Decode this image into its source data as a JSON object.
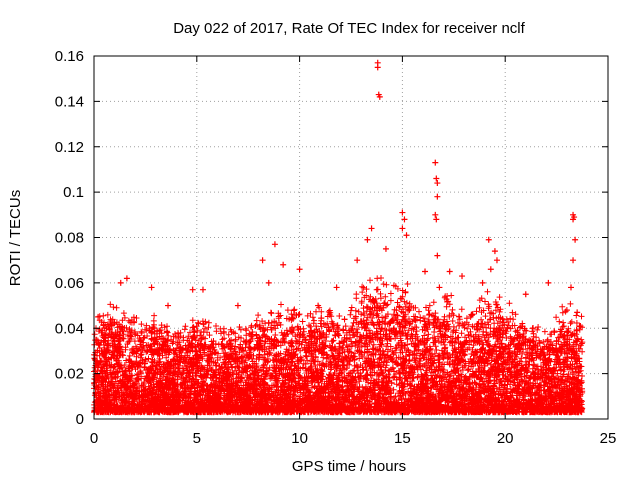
{
  "chart_data": {
    "type": "scatter",
    "title": "Day 022 of 2017, Rate Of TEC Index for receiver nclf",
    "xlabel": "GPS time / hours",
    "ylabel": "ROTI / TECUs",
    "xlim": [
      0,
      25
    ],
    "ylim": [
      0,
      0.16
    ],
    "xticks": [
      0,
      5,
      10,
      15,
      20,
      25
    ],
    "yticks": [
      0,
      0.02,
      0.04,
      0.06,
      0.08,
      0.1,
      0.12,
      0.14,
      0.16
    ],
    "xtick_labels": [
      "0",
      "5",
      "10",
      "15",
      "20",
      "25"
    ],
    "ytick_labels": [
      "0",
      "0.02",
      "0.04",
      "0.06",
      "0.08",
      "0.1",
      "0.12",
      "0.14",
      "0.16"
    ],
    "grid": true,
    "marker": "+",
    "marker_color": "#ff0000",
    "data_range_hours": [
      0,
      23.75
    ],
    "series": [
      {
        "name": "ROTI",
        "envelope_hours": [
          0,
          1,
          2,
          3,
          4,
          5,
          6,
          7,
          8,
          9,
          10,
          11,
          12,
          13,
          14,
          15,
          16,
          17,
          18,
          19,
          20,
          21,
          22,
          23,
          23.75
        ],
        "envelope_typical_max": [
          0.04,
          0.045,
          0.04,
          0.04,
          0.035,
          0.04,
          0.035,
          0.035,
          0.04,
          0.045,
          0.045,
          0.045,
          0.04,
          0.055,
          0.06,
          0.055,
          0.045,
          0.05,
          0.045,
          0.05,
          0.045,
          0.04,
          0.035,
          0.045,
          0.04
        ],
        "peaks": [
          {
            "x": 0.2,
            "y": 0.045
          },
          {
            "x": 1.3,
            "y": 0.06
          },
          {
            "x": 1.6,
            "y": 0.062
          },
          {
            "x": 2.8,
            "y": 0.058
          },
          {
            "x": 3.6,
            "y": 0.05
          },
          {
            "x": 4.8,
            "y": 0.057
          },
          {
            "x": 5.3,
            "y": 0.057
          },
          {
            "x": 7.0,
            "y": 0.05
          },
          {
            "x": 8.2,
            "y": 0.07
          },
          {
            "x": 8.5,
            "y": 0.06
          },
          {
            "x": 8.8,
            "y": 0.077
          },
          {
            "x": 9.2,
            "y": 0.068
          },
          {
            "x": 10.0,
            "y": 0.066
          },
          {
            "x": 10.9,
            "y": 0.05
          },
          {
            "x": 11.8,
            "y": 0.058
          },
          {
            "x": 12.8,
            "y": 0.07
          },
          {
            "x": 13.3,
            "y": 0.079
          },
          {
            "x": 13.5,
            "y": 0.084
          },
          {
            "x": 13.8,
            "y": 0.157
          },
          {
            "x": 13.8,
            "y": 0.155
          },
          {
            "x": 13.85,
            "y": 0.143
          },
          {
            "x": 13.9,
            "y": 0.142
          },
          {
            "x": 14.2,
            "y": 0.075
          },
          {
            "x": 15.0,
            "y": 0.091
          },
          {
            "x": 15.1,
            "y": 0.088
          },
          {
            "x": 15.0,
            "y": 0.084
          },
          {
            "x": 15.2,
            "y": 0.081
          },
          {
            "x": 16.1,
            "y": 0.065
          },
          {
            "x": 16.6,
            "y": 0.113
          },
          {
            "x": 16.65,
            "y": 0.106
          },
          {
            "x": 16.7,
            "y": 0.104
          },
          {
            "x": 16.7,
            "y": 0.098
          },
          {
            "x": 16.6,
            "y": 0.09
          },
          {
            "x": 16.65,
            "y": 0.088
          },
          {
            "x": 16.7,
            "y": 0.072
          },
          {
            "x": 16.8,
            "y": 0.058
          },
          {
            "x": 17.3,
            "y": 0.065
          },
          {
            "x": 17.9,
            "y": 0.063
          },
          {
            "x": 18.9,
            "y": 0.06
          },
          {
            "x": 19.2,
            "y": 0.079
          },
          {
            "x": 19.3,
            "y": 0.066
          },
          {
            "x": 19.5,
            "y": 0.074
          },
          {
            "x": 19.6,
            "y": 0.07
          },
          {
            "x": 21.0,
            "y": 0.055
          },
          {
            "x": 22.1,
            "y": 0.06
          },
          {
            "x": 23.0,
            "y": 0.048
          },
          {
            "x": 23.2,
            "y": 0.058
          },
          {
            "x": 23.3,
            "y": 0.09
          },
          {
            "x": 23.35,
            "y": 0.089
          },
          {
            "x": 23.3,
            "y": 0.088
          },
          {
            "x": 23.4,
            "y": 0.079
          },
          {
            "x": 23.3,
            "y": 0.07
          },
          {
            "x": 23.5,
            "y": 0.047
          }
        ]
      }
    ]
  }
}
